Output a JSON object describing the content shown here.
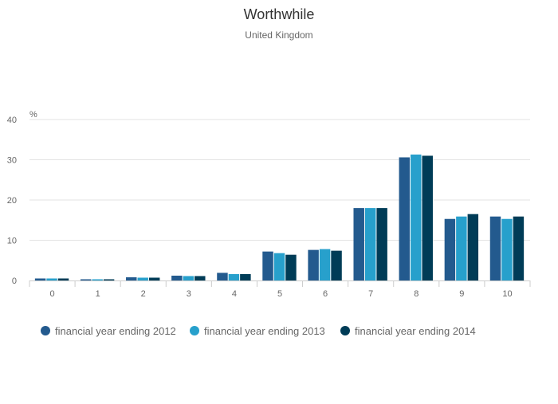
{
  "chart_data": {
    "type": "bar",
    "title": "Worthwhile",
    "subtitle": "United Kingdom",
    "ylabel": "%",
    "xlabel": "",
    "ylim": [
      0,
      40
    ],
    "yticks": [
      0,
      10,
      20,
      30,
      40
    ],
    "categories": [
      "0",
      "1",
      "2",
      "3",
      "4",
      "5",
      "6",
      "7",
      "8",
      "9",
      "10"
    ],
    "grid": true,
    "legend_position": "bottom",
    "series": [
      {
        "name": "financial year ending 2012",
        "color": "#235a8e",
        "values": [
          0.5,
          0.3,
          0.8,
          1.2,
          1.9,
          7.2,
          7.6,
          18.0,
          30.6,
          15.3,
          15.9
        ]
      },
      {
        "name": "financial year ending 2013",
        "color": "#27a0cc",
        "values": [
          0.5,
          0.3,
          0.7,
          1.1,
          1.6,
          6.8,
          7.8,
          18.0,
          31.3,
          15.9,
          15.3
        ]
      },
      {
        "name": "financial year ending 2014",
        "color": "#003c57",
        "values": [
          0.5,
          0.3,
          0.7,
          1.1,
          1.6,
          6.4,
          7.4,
          18.0,
          31.0,
          16.5,
          15.9
        ]
      }
    ]
  }
}
